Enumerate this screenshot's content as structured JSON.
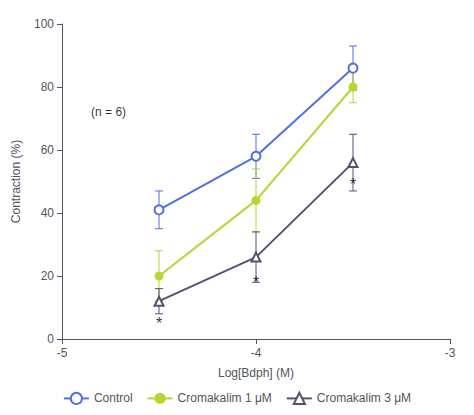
{
  "chart_data": {
    "type": "line",
    "x": [
      -4.5,
      -4.0,
      -3.5
    ],
    "series": [
      {
        "name": "Control",
        "values": [
          41,
          58,
          86
        ],
        "errors": [
          6,
          7,
          7
        ],
        "marker": "open_circle"
      },
      {
        "name": "Cromakalim 1 μM",
        "values": [
          20,
          44,
          80
        ],
        "errors": [
          8,
          10,
          5
        ],
        "marker": "circle"
      },
      {
        "name": "Cromakalim 3 μM",
        "values": [
          12,
          26,
          56
        ],
        "errors": [
          4,
          8,
          9
        ],
        "marker": "open_triangle"
      }
    ],
    "annotations": [
      {
        "text": "*",
        "x": -4.5,
        "y": 5,
        "color": "#000000"
      },
      {
        "text": "*",
        "x": -4.0,
        "y": 18,
        "color": "#000000"
      },
      {
        "text": "*",
        "x": -3.5,
        "y": 49,
        "color": "#000000"
      },
      {
        "text": "(n = 6)",
        "x": -4.85,
        "y": 72,
        "color": "#000000"
      }
    ],
    "xlabel": "Log[Bdph] (M)",
    "ylabel": "Contraction (%)",
    "xlim": [
      -5,
      -3
    ],
    "xticks": [
      -5,
      -4,
      -3
    ],
    "ylim": [
      0,
      100
    ],
    "yticks": [
      0,
      20,
      40,
      60,
      80,
      100
    ],
    "grid": false,
    "legend": "bottom"
  }
}
